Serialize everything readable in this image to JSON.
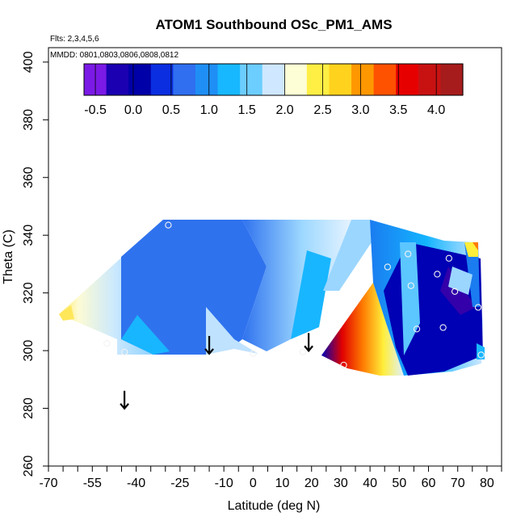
{
  "chart_data": {
    "type": "heatmap",
    "title": "ATOM1 Southbound OSc_PM1_AMS",
    "flights_label": "Flts: 2,3,4,5,6",
    "dates_label": "MMDD: 0801,0803,0806,0808,0812",
    "xlabel": "Latitude (deg N)",
    "ylabel": "Theta (C)",
    "xlim": [
      -70,
      85
    ],
    "ylim": [
      260,
      405
    ],
    "x_ticks": [
      -70,
      -55,
      -40,
      -25,
      -10,
      0,
      10,
      20,
      30,
      40,
      50,
      60,
      70,
      80
    ],
    "x_tick_labels": [
      "-70",
      "-55",
      "-40",
      "-25",
      "-10",
      "0",
      "10",
      "20",
      "30",
      "40",
      "50",
      "60",
      "70",
      "80"
    ],
    "x_minor_ticks": [
      -65,
      -60,
      -50,
      -45,
      -35,
      -30,
      -20,
      -15,
      -5,
      5,
      15,
      25,
      35,
      45,
      55,
      65,
      75,
      85
    ],
    "y_ticks": [
      260,
      280,
      300,
      320,
      340,
      360,
      380,
      400
    ],
    "y_tick_labels": [
      "260",
      "280",
      "300",
      "320",
      "340",
      "360",
      "380",
      "400"
    ],
    "colorbar": {
      "min": -0.65,
      "max": 4.35,
      "ticks": [
        -0.5,
        0.0,
        0.5,
        1.0,
        1.5,
        2.0,
        2.5,
        3.0,
        3.5,
        4.0
      ],
      "tick_labels": [
        "-0.5",
        "0.0",
        "0.5",
        "1.0",
        "1.5",
        "2.0",
        "2.5",
        "3.0",
        "3.5",
        "4.0"
      ],
      "colors": [
        "#7b1ae6",
        "#1a00b0",
        "#0000a8",
        "#0a2ee0",
        "#2f6ff0",
        "#1f8ff5",
        "#17b8ff",
        "#6ccdff",
        "#cfe7ff",
        "#fdfdd6",
        "#ffee44",
        "#ffd21e",
        "#ff9800",
        "#ff5200",
        "#e60000",
        "#c81212",
        "#a61c1c"
      ]
    },
    "field_colors": {
      "outside": "#ffffff",
      "west_high": "#ffe75a",
      "west_mid": "#d8efff",
      "cyan": "#18b6ff",
      "blue": "#2f72ee",
      "light": "#cde6ff",
      "deep": "#0000b4",
      "purple": "#3300aa",
      "yellow": "#ffee3a",
      "orange": "#ff7a00",
      "red": "#e00000"
    },
    "sample_points": [
      {
        "lat": -29,
        "theta": 343.5
      },
      {
        "lat": -50,
        "theta": 302.5
      },
      {
        "lat": -44,
        "theta": 299.5
      },
      {
        "lat": 0,
        "theta": 299.0
      },
      {
        "lat": 17,
        "theta": 299.5
      },
      {
        "lat": 31,
        "theta": 295.0
      },
      {
        "lat": 46,
        "theta": 329.0
      },
      {
        "lat": 53,
        "theta": 333.5
      },
      {
        "lat": 54,
        "theta": 322.5
      },
      {
        "lat": 56,
        "theta": 307.5
      },
      {
        "lat": 63,
        "theta": 326.5
      },
      {
        "lat": 65,
        "theta": 308.0
      },
      {
        "lat": 67,
        "theta": 332.0
      },
      {
        "lat": 69,
        "theta": 320.5
      },
      {
        "lat": 77,
        "theta": 315.0
      },
      {
        "lat": 78,
        "theta": 298.5
      }
    ],
    "arrows": [
      {
        "lat": -44,
        "theta": 283
      },
      {
        "lat": -15,
        "theta": 302
      },
      {
        "lat": 19,
        "theta": 303
      }
    ]
  }
}
